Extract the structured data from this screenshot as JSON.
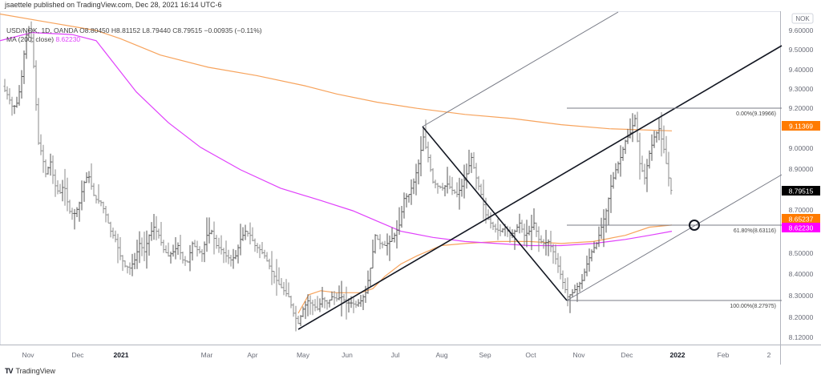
{
  "publisher_line": "jsaettele published on TradingView.com, Dec 28, 2021 16:14 UTC-6",
  "legend": {
    "symbol_line": "USD/NOK, 1D, OANDA  O8.80450  H8.81152  L8.79440  C8.79515  −0.00935 (−0.11%)",
    "ma_label": "MA (200, close)",
    "ma_value": "8.62230"
  },
  "footer": {
    "logo": "TV",
    "brand": "TradingView"
  },
  "colors": {
    "bars": "#555555",
    "ma200": "#e040fb",
    "ma_orange": "#f7a35c",
    "orange_badge": "#ff7b00",
    "pink_badge": "#ff00ff",
    "last_price_badge": "#000000",
    "axis_text": "#6a6d78",
    "grid_border": "#d1d4dc"
  },
  "chart_data": {
    "type": "ohlc_bar",
    "title": "USD/NOK, 1D, OANDA",
    "currency": "NOK",
    "ohlc_last": {
      "open": 8.8045,
      "high": 8.81152,
      "low": 8.7944,
      "close": 8.79515,
      "change": -0.00935,
      "change_pct": -0.11
    },
    "x_ticks": [
      "Nov",
      "Dec",
      "2021",
      "Mar",
      "Apr",
      "May",
      "Jun",
      "Jul",
      "Aug",
      "Sep",
      "Oct",
      "Nov",
      "Dec",
      "2022",
      "Feb",
      "2"
    ],
    "x_ticks_bold": [
      "2021",
      "2022"
    ],
    "y_ticks": [
      9.6,
      9.5,
      9.4,
      9.3,
      9.2,
      9.0,
      8.9,
      8.7,
      8.5,
      8.4,
      8.3,
      8.2,
      8.12
    ],
    "ylim": [
      8.12,
      9.65
    ],
    "price_badges": [
      {
        "label": "9.11369",
        "value": 9.11369,
        "color": "#ff7b00",
        "meaning": "orange MA"
      },
      {
        "label": "8.79515",
        "value": 8.79515,
        "color": "#000000",
        "meaning": "last price"
      },
      {
        "label": "8.65237",
        "value": 8.65237,
        "color": "#ff7b00",
        "meaning": "orange MA"
      },
      {
        "label": "8.62230",
        "value": 8.6223,
        "color": "#ff00ff",
        "meaning": "MA 200"
      }
    ],
    "fib_levels": [
      {
        "label": "0.00%(9.19966)",
        "price": 9.19966
      },
      {
        "label": "61.80%(8.63116)",
        "price": 8.63116
      },
      {
        "label": "100.00%(8.27975)",
        "price": 8.27975
      }
    ],
    "price_path": [
      [
        0,
        9.35
      ],
      [
        4,
        9.32
      ],
      [
        10,
        9.28
      ],
      [
        16,
        9.22
      ],
      [
        22,
        9.25
      ],
      [
        28,
        9.4
      ],
      [
        32,
        9.57
      ],
      [
        36,
        9.6
      ],
      [
        40,
        9.55
      ],
      [
        44,
        9.3
      ],
      [
        48,
        9.05
      ],
      [
        52,
        9.0
      ],
      [
        58,
        8.88
      ],
      [
        62,
        8.98
      ],
      [
        68,
        8.85
      ],
      [
        74,
        8.8
      ],
      [
        80,
        8.85
      ],
      [
        86,
        8.72
      ],
      [
        92,
        8.7
      ],
      [
        98,
        8.74
      ],
      [
        104,
        8.85
      ],
      [
        110,
        8.9
      ],
      [
        118,
        8.78
      ],
      [
        126,
        8.76
      ],
      [
        132,
        8.7
      ],
      [
        138,
        8.62
      ],
      [
        144,
        8.58
      ],
      [
        150,
        8.5
      ],
      [
        156,
        8.45
      ],
      [
        162,
        8.44
      ],
      [
        168,
        8.48
      ],
      [
        174,
        8.56
      ],
      [
        180,
        8.52
      ],
      [
        186,
        8.6
      ],
      [
        192,
        8.64
      ],
      [
        198,
        8.6
      ],
      [
        204,
        8.53
      ],
      [
        210,
        8.5
      ],
      [
        216,
        8.52
      ],
      [
        222,
        8.55
      ],
      [
        228,
        8.48
      ],
      [
        234,
        8.47
      ],
      [
        240,
        8.56
      ],
      [
        246,
        8.53
      ],
      [
        252,
        8.51
      ],
      [
        258,
        8.6
      ],
      [
        264,
        8.62
      ],
      [
        270,
        8.55
      ],
      [
        276,
        8.53
      ],
      [
        282,
        8.5
      ],
      [
        288,
        8.48
      ],
      [
        294,
        8.5
      ],
      [
        300,
        8.58
      ],
      [
        306,
        8.62
      ],
      [
        312,
        8.6
      ],
      [
        318,
        8.55
      ],
      [
        324,
        8.53
      ],
      [
        330,
        8.5
      ],
      [
        336,
        8.45
      ],
      [
        342,
        8.4
      ],
      [
        348,
        8.36
      ],
      [
        354,
        8.33
      ],
      [
        360,
        8.3
      ],
      [
        366,
        8.22
      ],
      [
        372,
        8.17
      ],
      [
        378,
        8.24
      ],
      [
        384,
        8.28
      ],
      [
        390,
        8.26
      ],
      [
        396,
        8.24
      ],
      [
        402,
        8.29
      ],
      [
        408,
        8.27
      ],
      [
        414,
        8.3
      ],
      [
        420,
        8.29
      ],
      [
        426,
        8.3
      ],
      [
        432,
        8.27
      ],
      [
        438,
        8.27
      ],
      [
        444,
        8.26
      ],
      [
        450,
        8.28
      ],
      [
        456,
        8.32
      ],
      [
        462,
        8.44
      ],
      [
        468,
        8.6
      ],
      [
        474,
        8.56
      ],
      [
        480,
        8.55
      ],
      [
        486,
        8.57
      ],
      [
        492,
        8.6
      ],
      [
        498,
        8.65
      ],
      [
        504,
        8.78
      ],
      [
        510,
        8.8
      ],
      [
        516,
        8.86
      ],
      [
        522,
        8.95
      ],
      [
        528,
        9.08
      ],
      [
        534,
        8.98
      ],
      [
        540,
        8.86
      ],
      [
        546,
        8.84
      ],
      [
        552,
        8.83
      ],
      [
        558,
        8.85
      ],
      [
        564,
        8.82
      ],
      [
        570,
        8.8
      ],
      [
        576,
        8.84
      ],
      [
        582,
        8.9
      ],
      [
        588,
        8.98
      ],
      [
        594,
        8.88
      ],
      [
        600,
        8.8
      ],
      [
        606,
        8.7
      ],
      [
        612,
        8.66
      ],
      [
        618,
        8.63
      ],
      [
        624,
        8.62
      ],
      [
        630,
        8.64
      ],
      [
        636,
        8.6
      ],
      [
        642,
        8.62
      ],
      [
        648,
        8.66
      ],
      [
        654,
        8.6
      ],
      [
        660,
        8.62
      ],
      [
        666,
        8.66
      ],
      [
        672,
        8.58
      ],
      [
        678,
        8.56
      ],
      [
        684,
        8.57
      ],
      [
        690,
        8.52
      ],
      [
        696,
        8.45
      ],
      [
        702,
        8.37
      ],
      [
        708,
        8.3
      ],
      [
        714,
        8.32
      ],
      [
        720,
        8.35
      ],
      [
        726,
        8.38
      ],
      [
        732,
        8.46
      ],
      [
        738,
        8.52
      ],
      [
        744,
        8.56
      ],
      [
        750,
        8.64
      ],
      [
        756,
        8.72
      ],
      [
        762,
        8.84
      ],
      [
        768,
        8.92
      ],
      [
        774,
        8.98
      ],
      [
        780,
        9.06
      ],
      [
        786,
        9.1
      ],
      [
        792,
        9.17
      ],
      [
        798,
        8.95
      ],
      [
        804,
        8.88
      ],
      [
        810,
        9.0
      ],
      [
        816,
        9.08
      ],
      [
        822,
        9.12
      ],
      [
        828,
        9.02
      ],
      [
        834,
        8.88
      ],
      [
        838,
        8.8
      ]
    ],
    "ma200_path": [
      [
        0,
        9.55
      ],
      [
        40,
        9.59
      ],
      [
        90,
        9.58
      ],
      [
        120,
        9.55
      ],
      [
        140,
        9.45
      ],
      [
        170,
        9.3
      ],
      [
        210,
        9.15
      ],
      [
        250,
        9.03
      ],
      [
        300,
        8.92
      ],
      [
        350,
        8.83
      ],
      [
        400,
        8.77
      ],
      [
        440,
        8.72
      ],
      [
        470,
        8.67
      ],
      [
        500,
        8.62
      ],
      [
        540,
        8.59
      ],
      [
        580,
        8.57
      ],
      [
        620,
        8.56
      ],
      [
        660,
        8.55
      ],
      [
        700,
        8.55
      ],
      [
        740,
        8.56
      ],
      [
        780,
        8.58
      ],
      [
        810,
        8.6
      ],
      [
        838,
        8.62
      ]
    ],
    "ma_orange_path": [
      [
        0,
        9.68
      ],
      [
        60,
        9.64
      ],
      [
        120,
        9.6
      ],
      [
        150,
        9.56
      ],
      [
        200,
        9.48
      ],
      [
        260,
        9.42
      ],
      [
        320,
        9.38
      ],
      [
        380,
        9.33
      ],
      [
        420,
        9.29
      ],
      [
        470,
        9.25
      ],
      [
        520,
        9.22
      ],
      [
        580,
        9.19
      ],
      [
        640,
        9.17
      ],
      [
        700,
        9.14
      ],
      [
        760,
        9.12
      ],
      [
        838,
        9.11
      ]
    ],
    "ma_orange_short_path": [
      [
        372,
        8.22
      ],
      [
        385,
        8.31
      ],
      [
        400,
        8.33
      ],
      [
        420,
        8.32
      ],
      [
        450,
        8.32
      ],
      [
        465,
        8.34
      ],
      [
        480,
        8.4
      ],
      [
        500,
        8.46
      ],
      [
        520,
        8.5
      ],
      [
        550,
        8.55
      ],
      [
        580,
        8.56
      ],
      [
        620,
        8.57
      ],
      [
        660,
        8.57
      ],
      [
        700,
        8.56
      ],
      [
        740,
        8.57
      ],
      [
        780,
        8.6
      ],
      [
        810,
        8.64
      ],
      [
        838,
        8.65
      ]
    ],
    "drawings": {
      "pitchfork": {
        "pivot_a": [
          372,
          8.14
        ],
        "pivot_b": [
          527,
          9.11
        ],
        "pivot_c": [
          707,
          8.28
        ]
      },
      "circle_marker": {
        "x": 866,
        "price": 8.631
      }
    }
  }
}
